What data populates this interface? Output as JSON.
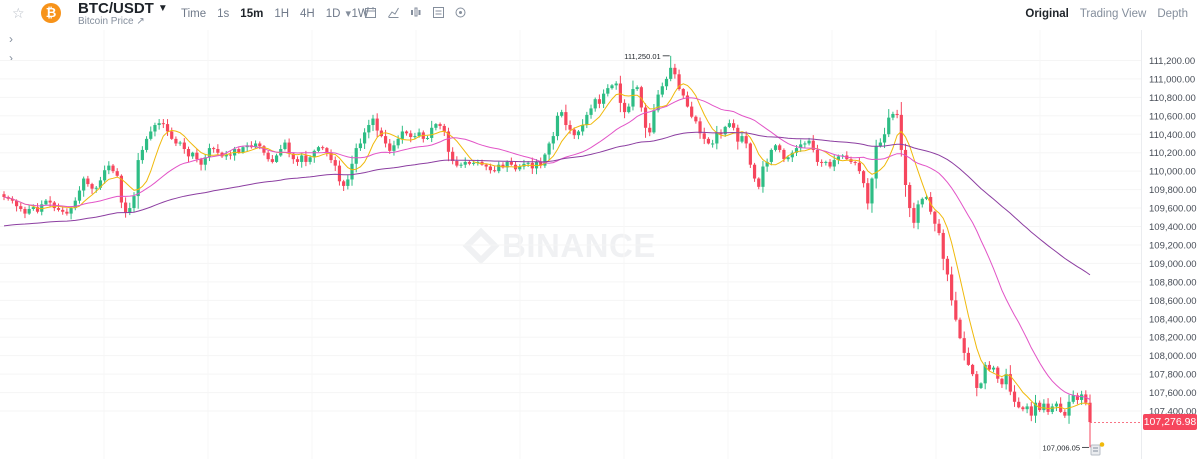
{
  "header": {
    "coin_icon": "bitcoin-icon",
    "coin_symbol": "₿",
    "pair": "BTC/USDT",
    "subtitle": "Bitcoin Price ↗",
    "intervals": [
      "Time",
      "1s",
      "15m",
      "1H",
      "4H",
      "1D",
      "1W"
    ],
    "active_interval": "15m",
    "tool_icons": [
      "chevron-down-icon",
      "calendar-icon",
      "chart-type-icon",
      "indicators-icon",
      "settings-icon",
      "more-icon"
    ],
    "views": [
      "Original",
      "Trading View",
      "Depth"
    ],
    "active_view": "Original"
  },
  "watermark": "BINANCE",
  "colors": {
    "up": "#2ebd85",
    "down": "#f6465d",
    "ma7": "#f0b90b",
    "ma25": "#e254c7",
    "ma99": "#8c3ea1",
    "accent": "#f0b90b"
  },
  "chart_data": {
    "type": "candlestick",
    "y_axis_labels": [
      "111,200.00",
      "111,000.00",
      "110,800.00",
      "110,600.00",
      "110,400.00",
      "110,200.00",
      "110,000.00",
      "109,800.00",
      "109,600.00",
      "109,400.00",
      "109,200.00",
      "109,000.00",
      "108,800.00",
      "108,600.00",
      "108,400.00",
      "108,200.00",
      "108,000.00",
      "107,800.00",
      "107,600.00",
      "107,400.00"
    ],
    "ylim": [
      106880,
      111530
    ],
    "high_label": "111,250.01",
    "low_label": "107,006.05",
    "last_price": "107,276.98",
    "closes": [
      109720,
      109700,
      109680,
      109620,
      109590,
      109540,
      109590,
      109610,
      109560,
      109640,
      109680,
      109660,
      109600,
      109580,
      109560,
      109540,
      109600,
      109680,
      109790,
      109920,
      109860,
      109810,
      109820,
      109900,
      110010,
      110060,
      110000,
      109950,
      109660,
      109550,
      109600,
      109730,
      110120,
      110230,
      110350,
      110430,
      110500,
      110520,
      110510,
      110430,
      110350,
      110300,
      110310,
      110240,
      110160,
      110200,
      110130,
      110070,
      110150,
      110250,
      110240,
      110200,
      110160,
      110180,
      110170,
      110240,
      110200,
      110260,
      110280,
      110260,
      110300,
      110270,
      110200,
      110130,
      110100,
      110170,
      110240,
      110310,
      110190,
      110130,
      110100,
      110170,
      110100,
      110150,
      110220,
      110260,
      110250,
      110200,
      110120,
      110060,
      109890,
      109840,
      109910,
      110080,
      110250,
      110300,
      110420,
      110500,
      110570,
      110440,
      110380,
      110300,
      110220,
      110280,
      110350,
      110430,
      110410,
      110370,
      110380,
      110420,
      110350,
      110360,
      110470,
      110510,
      110490,
      110430,
      110210,
      110110,
      110060,
      110070,
      110100,
      110080,
      110090,
      110100,
      110070,
      110050,
      110010,
      110000,
      110070,
      110040,
      110100,
      110070,
      110020,
      110050,
      110080,
      110090,
      110030,
      110100,
      110060,
      110180,
      110300,
      110380,
      110600,
      110640,
      110500,
      110450,
      110390,
      110430,
      110500,
      110610,
      110680,
      110780,
      110730,
      110840,
      110900,
      110930,
      110950,
      110740,
      110640,
      110700,
      110890,
      110910,
      110690,
      110470,
      110420,
      110660,
      110830,
      110920,
      111000,
      111120,
      111050,
      110890,
      110820,
      110700,
      110590,
      110540,
      110410,
      110350,
      110300,
      110300,
      110420,
      110400,
      110480,
      110520,
      110470,
      110320,
      110380,
      110300,
      110070,
      109920,
      109830,
      110050,
      110100,
      110230,
      110280,
      110230,
      110130,
      110150,
      110200,
      110250,
      110290,
      110300,
      110330,
      110230,
      110100,
      110090,
      110100,
      110050,
      110120,
      110160,
      110170,
      110130,
      110100,
      110090,
      110000,
      109870,
      109650,
      109920,
      110270,
      110310,
      110400,
      110580,
      110620,
      110610,
      110230,
      109850,
      109600,
      109440,
      109640,
      109700,
      109720,
      109560,
      109430,
      109330,
      109050,
      108880,
      108600,
      108390,
      108190,
      108030,
      107900,
      107800,
      107650,
      107700,
      107900,
      107850,
      107870,
      107750,
      107690,
      107800,
      107610,
      107500,
      107440,
      107420,
      107450,
      107350,
      107490,
      107410,
      107480,
      107390,
      107450,
      107480,
      107390,
      107350,
      107500,
      107570,
      107520,
      107580,
      107490,
      107280
    ]
  }
}
